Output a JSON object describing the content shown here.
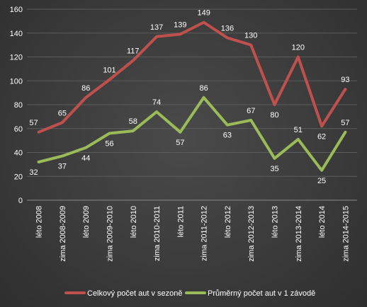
{
  "chart_data": {
    "type": "line",
    "title": "",
    "xlabel": "",
    "ylabel": "",
    "ylim": [
      0,
      160
    ],
    "yticks": [
      0,
      20,
      40,
      60,
      80,
      100,
      120,
      140,
      160
    ],
    "grid": "horizontal",
    "legend_position": "bottom",
    "categories": [
      "léto 2008",
      "zima 2008-2009",
      "léto 2009",
      "zima 2009-2010",
      "léto 2010",
      "zima 2010-2011",
      "léto 2011",
      "zima 2011-2012",
      "léto 2012",
      "zima 2012-2013",
      "léto 2013",
      "zima 2013-2014",
      "léto 2014",
      "zima 2014-2015"
    ],
    "series": [
      {
        "name": "Celkový počet aut v sezoně",
        "color": "#c0504d",
        "values": [
          57,
          65,
          86,
          101,
          117,
          137,
          139,
          149,
          136,
          130,
          80,
          120,
          62,
          93
        ]
      },
      {
        "name": "Průměrný počet aut v 1 závodě",
        "color": "#9bbb59",
        "values": [
          32,
          37,
          44,
          56,
          58,
          74,
          57,
          86,
          63,
          67,
          35,
          51,
          25,
          57
        ]
      }
    ]
  }
}
